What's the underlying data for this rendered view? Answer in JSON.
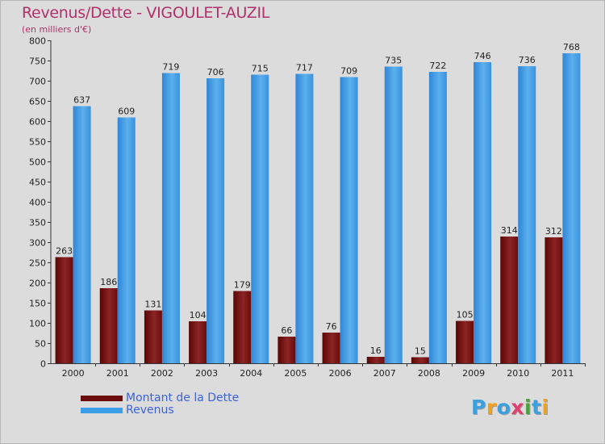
{
  "header": {
    "title": "Revenus/Dette - VIGOULET-AUZIL",
    "subtitle": "(en milliers d'€)"
  },
  "legend": {
    "items": [
      {
        "label": "Montant de la Dette",
        "color": "#7a1010"
      },
      {
        "label": "Revenus",
        "color": "#3d9ee8"
      }
    ]
  },
  "logo": {
    "letters": [
      {
        "char": "P",
        "color": "#3aa0e0"
      },
      {
        "char": "r",
        "color": "#f0a020"
      },
      {
        "char": "o",
        "color": "#3aa0e0"
      },
      {
        "char": "x",
        "color": "#e04070"
      },
      {
        "char": "i",
        "color": "#4aa040"
      },
      {
        "char": "t",
        "color": "#3aa0e0"
      },
      {
        "char": "i",
        "color": "#f0a020"
      }
    ]
  },
  "chart_data": {
    "type": "bar",
    "title": "Revenus/Dette - VIGOULET-AUZIL",
    "subtitle": "(en milliers d'€)",
    "xlabel": "",
    "ylabel": "",
    "ylim": [
      0,
      800
    ],
    "yticks": [
      0,
      50,
      100,
      150,
      200,
      250,
      300,
      350,
      400,
      450,
      500,
      550,
      600,
      650,
      700,
      750,
      800
    ],
    "grid": false,
    "legend_position": "bottom-left",
    "categories": [
      "2000",
      "2001",
      "2002",
      "2003",
      "2004",
      "2005",
      "2006",
      "2007",
      "2008",
      "2009",
      "2010",
      "2011"
    ],
    "series": [
      {
        "name": "Montant de la Dette",
        "color": "#7a1010",
        "values": [
          263,
          186,
          131,
          104,
          179,
          66,
          76,
          16,
          15,
          105,
          314,
          312
        ]
      },
      {
        "name": "Revenus",
        "color": "#3d9ee8",
        "values": [
          637,
          609,
          719,
          706,
          715,
          717,
          709,
          735,
          722,
          746,
          736,
          768
        ]
      }
    ]
  }
}
